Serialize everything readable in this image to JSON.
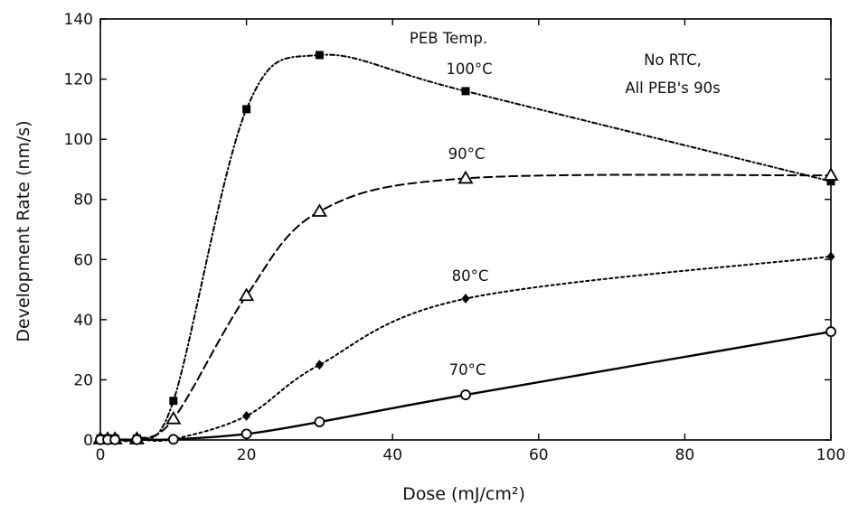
{
  "chart_data": {
    "type": "line",
    "title": "",
    "xlabel": "Dose (mJ/cm²)",
    "ylabel": "Development Rate (nm/s)",
    "xlim": [
      0,
      100
    ],
    "ylim": [
      0,
      140
    ],
    "xticks": [
      0,
      20,
      40,
      60,
      80,
      100
    ],
    "yticks": [
      0,
      20,
      40,
      60,
      80,
      100,
      120,
      140
    ],
    "grid": false,
    "legend_title": "PEB Temp.",
    "note": [
      "No RTC,",
      "All PEB's 90s"
    ],
    "series": [
      {
        "name": "100°C",
        "marker": "filled-square",
        "line": "dash-dot-fine",
        "x": [
          0,
          1,
          2,
          5,
          10,
          20,
          30,
          50,
          100
        ],
        "y": [
          0.5,
          0.5,
          0.5,
          0.5,
          13,
          110,
          128,
          116,
          86
        ]
      },
      {
        "name": "90°C",
        "marker": "open-triangle",
        "line": "dashed",
        "x": [
          0,
          1,
          2,
          5,
          10,
          20,
          30,
          50,
          100
        ],
        "y": [
          0.3,
          0.3,
          0.3,
          0.3,
          7,
          48,
          76,
          87,
          88
        ]
      },
      {
        "name": "80°C",
        "marker": "filled-diamond",
        "line": "dotted",
        "x": [
          0,
          1,
          2,
          5,
          10,
          20,
          30,
          50,
          100
        ],
        "y": [
          0.2,
          0.2,
          0.2,
          0.2,
          0.3,
          8,
          25,
          47,
          61
        ]
      },
      {
        "name": "70°C",
        "marker": "open-circle",
        "line": "solid",
        "x": [
          0,
          1,
          2,
          5,
          10,
          20,
          30,
          50,
          100
        ],
        "y": [
          0.1,
          0.1,
          0.1,
          0.1,
          0.2,
          2,
          6,
          15,
          36
        ]
      }
    ]
  }
}
